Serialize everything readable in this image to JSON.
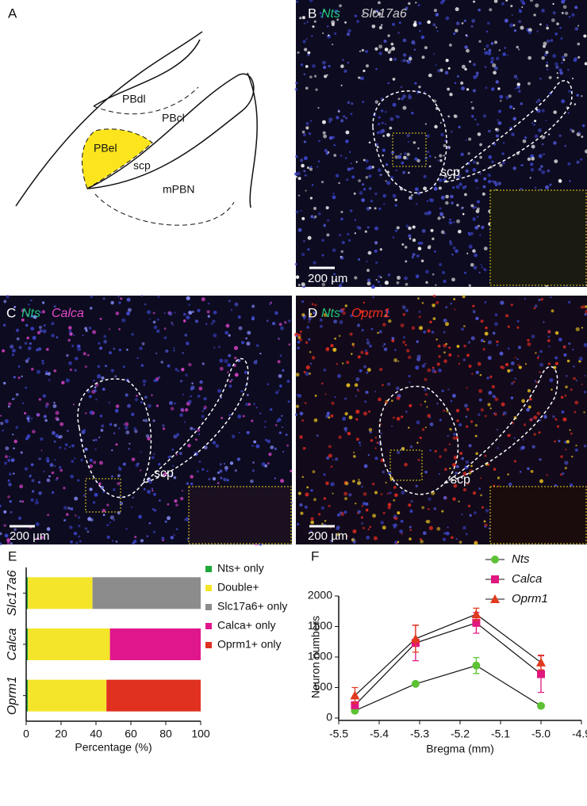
{
  "panels": {
    "a": {
      "label": "A",
      "regions": [
        "PBdl",
        "PBcl",
        "PBel",
        "scp",
        "mPBN"
      ]
    },
    "b": {
      "label": "B",
      "genes": [
        "Nts",
        "Slc17a6"
      ],
      "region": "scp",
      "scale_bar": "200 µm"
    },
    "c": {
      "label": "C",
      "genes": [
        "Nts",
        "Calca"
      ],
      "region": "scp",
      "scale_bar": "200 µm"
    },
    "d": {
      "label": "D",
      "genes": [
        "Nts",
        "Oprm1"
      ],
      "region": "scp",
      "scale_bar": "200 µm"
    }
  },
  "chart_data": [
    {
      "type": "bar",
      "panel_label": "E",
      "orientation": "horizontal",
      "stacked": true,
      "categories": [
        "Slc17a6",
        "Calca",
        "Oprm1"
      ],
      "series": [
        {
          "name": "Nts+ only",
          "color": "#1ea83a",
          "values": [
            1,
            1,
            1
          ]
        },
        {
          "name": "Double+",
          "color": "#f5e52a",
          "values": [
            37,
            47,
            45
          ]
        },
        {
          "name": "Slc17a6+ only",
          "color": "#8c8c8c",
          "values": [
            62,
            null,
            null
          ]
        },
        {
          "name": "Calca+ only",
          "color": "#e0168c",
          "values": [
            null,
            52,
            null
          ]
        },
        {
          "name": "Oprm1+ only",
          "color": "#e03020",
          "values": [
            null,
            null,
            54
          ]
        }
      ],
      "xlim": [
        0,
        100
      ],
      "xticks": [
        0,
        20,
        40,
        60,
        80,
        100
      ],
      "x_label": "Percentage (%)"
    },
    {
      "type": "line",
      "panel_label": "F",
      "x": [
        -5.46,
        -5.31,
        -5.16,
        -5.0
      ],
      "series": [
        {
          "name": "Nts",
          "color": "#5cc234",
          "marker": "circle",
          "values": [
            120,
            560,
            860,
            200
          ],
          "errors": [
            30,
            20,
            130,
            10
          ]
        },
        {
          "name": "Calca",
          "color": "#e0177f",
          "marker": "square",
          "values": [
            210,
            1230,
            1560,
            720
          ],
          "errors": [
            50,
            290,
            170,
            300
          ]
        },
        {
          "name": "Oprm1",
          "color": "#e23a1e",
          "marker": "triangle",
          "values": [
            370,
            1300,
            1700,
            910
          ],
          "errors": [
            130,
            220,
            100,
            120
          ]
        }
      ],
      "xlim": [
        -5.5,
        -4.9
      ],
      "xticks": [
        -5.5,
        -5.4,
        -5.3,
        -5.2,
        -5.1,
        {
          "value": -5.0,
          "label": "-5.0"
        },
        -4.9
      ],
      "ylim": [
        0,
        2000
      ],
      "yticks": [
        0,
        500,
        1000,
        1500,
        2000
      ],
      "x_label": "Bregma (mm)",
      "y_label": "Neuron numbers"
    }
  ]
}
